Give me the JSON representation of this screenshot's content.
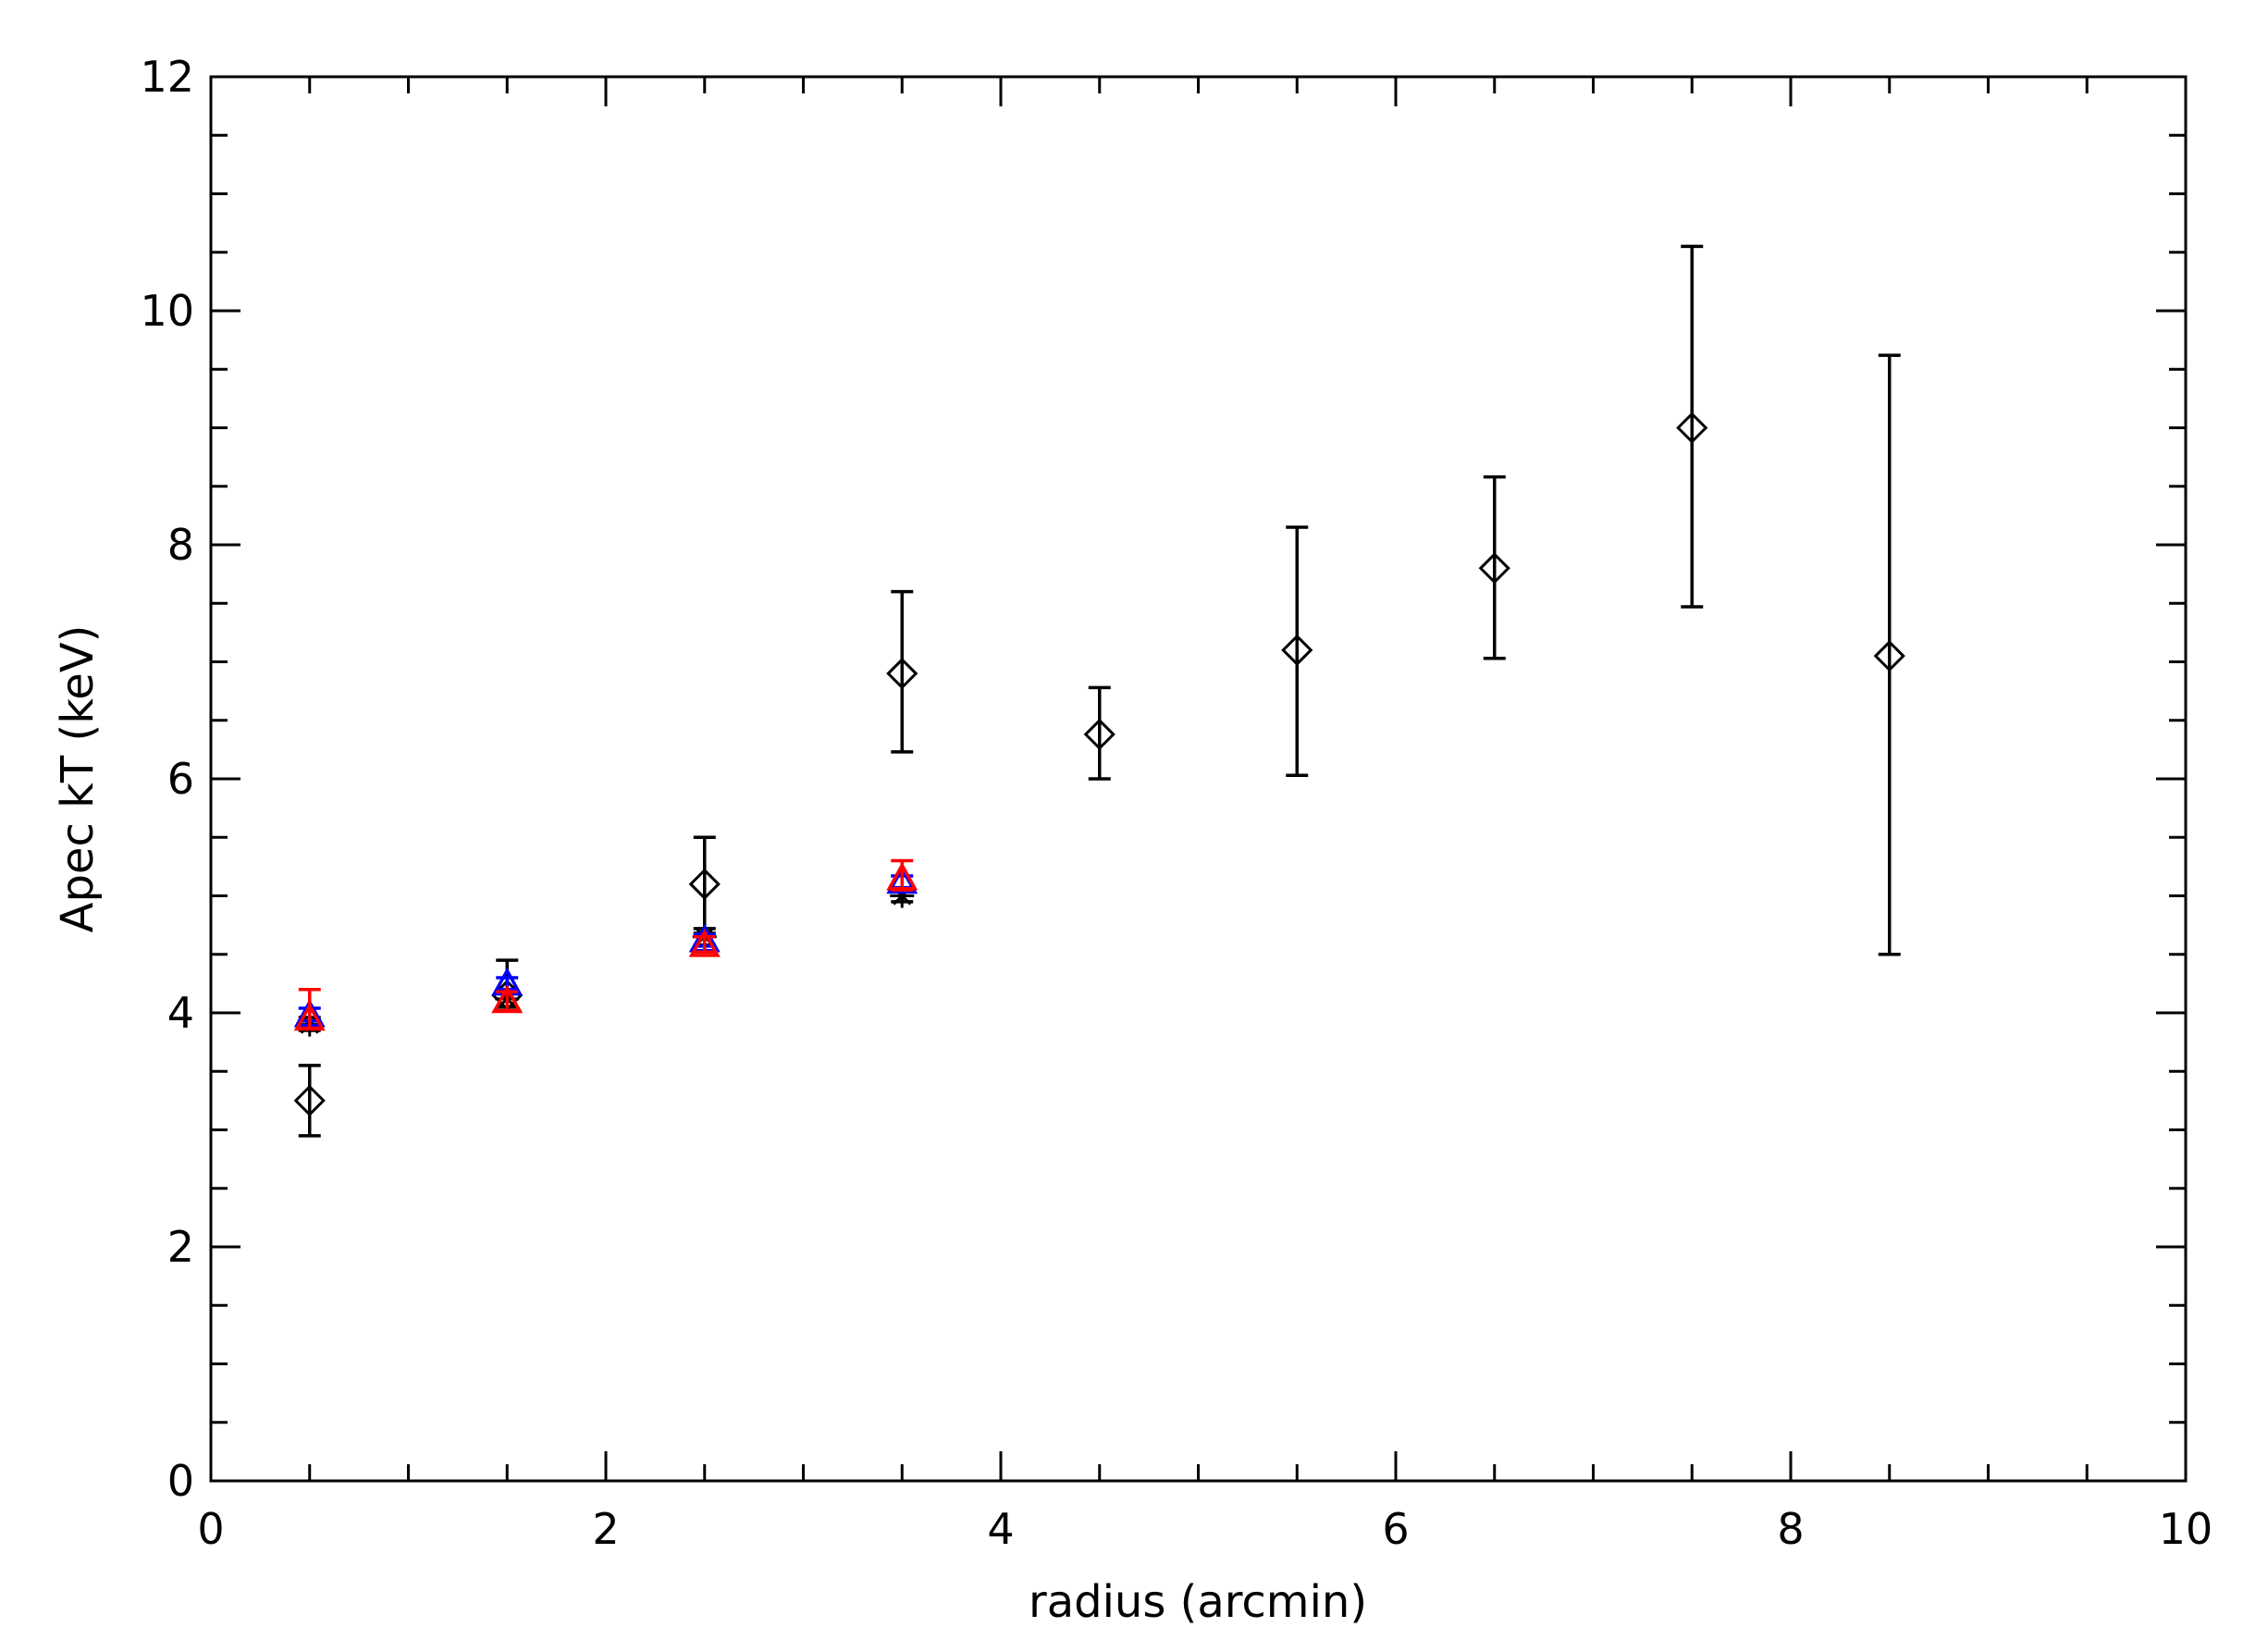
{
  "chart_data": {
    "type": "scatter",
    "title": "",
    "xlabel": "radius (arcmin)",
    "ylabel": "Apec kT (keV)",
    "xlim": [
      0,
      10
    ],
    "ylim": [
      0,
      12
    ],
    "x_ticks": [
      0,
      2,
      4,
      6,
      8,
      10
    ],
    "y_ticks": [
      0,
      2,
      4,
      6,
      8,
      10,
      12
    ],
    "x_tick_labels": [
      "0",
      "2",
      "4",
      "6",
      "8",
      "10"
    ],
    "y_tick_labels": [
      "0",
      "2",
      "4",
      "6",
      "8",
      "10",
      "12"
    ],
    "grid": false,
    "series": [
      {
        "marker": "diamond",
        "color": "#000000",
        "points": [
          {
            "x": 0.5,
            "y": 3.25,
            "ylow": 2.95,
            "yhigh": 3.55
          },
          {
            "x": 1.5,
            "y": 4.15,
            "ylow": 4.02,
            "yhigh": 4.45
          },
          {
            "x": 2.5,
            "y": 5.1,
            "ylow": 4.68,
            "yhigh": 5.5
          },
          {
            "x": 3.5,
            "y": 6.9,
            "ylow": 6.23,
            "yhigh": 7.6
          },
          {
            "x": 4.5,
            "y": 6.38,
            "ylow": 6.0,
            "yhigh": 6.78
          },
          {
            "x": 5.5,
            "y": 7.1,
            "ylow": 6.03,
            "yhigh": 8.15
          },
          {
            "x": 6.5,
            "y": 7.8,
            "ylow": 7.03,
            "yhigh": 8.58
          },
          {
            "x": 7.5,
            "y": 9.0,
            "ylow": 7.47,
            "yhigh": 10.55
          },
          {
            "x": 8.5,
            "y": 7.05,
            "ylow": 4.5,
            "yhigh": 9.62
          }
        ]
      },
      {
        "marker": "asterisk",
        "color": "#000000",
        "points": [
          {
            "x": 0.5,
            "y": 3.9,
            "ylow": 3.85,
            "yhigh": 3.96
          },
          {
            "x": 1.5,
            "y": 4.12,
            "ylow": 4.05,
            "yhigh": 4.2
          },
          {
            "x": 2.5,
            "y": 4.65,
            "ylow": 4.58,
            "yhigh": 4.72
          },
          {
            "x": 3.5,
            "y": 5.0,
            "ylow": 4.95,
            "yhigh": 5.06
          }
        ]
      },
      {
        "marker": "triangle",
        "color": "#0000ff",
        "points": [
          {
            "x": 0.5,
            "y": 3.98,
            "ylow": 3.93,
            "yhigh": 4.04
          },
          {
            "x": 1.5,
            "y": 4.25,
            "ylow": 4.2,
            "yhigh": 4.3
          },
          {
            "x": 2.5,
            "y": 4.62,
            "ylow": 4.57,
            "yhigh": 4.67
          },
          {
            "x": 3.5,
            "y": 5.12,
            "ylow": 5.07,
            "yhigh": 5.17
          }
        ]
      },
      {
        "marker": "triangle",
        "color": "#ff0000",
        "points": [
          {
            "x": 0.5,
            "y": 3.95,
            "ylow": 3.87,
            "yhigh": 4.2
          },
          {
            "x": 1.5,
            "y": 4.1,
            "ylow": 4.02,
            "yhigh": 4.18
          },
          {
            "x": 2.5,
            "y": 4.58,
            "ylow": 4.52,
            "yhigh": 4.65
          },
          {
            "x": 3.5,
            "y": 5.15,
            "ylow": 5.05,
            "yhigh": 5.3
          }
        ]
      }
    ]
  }
}
